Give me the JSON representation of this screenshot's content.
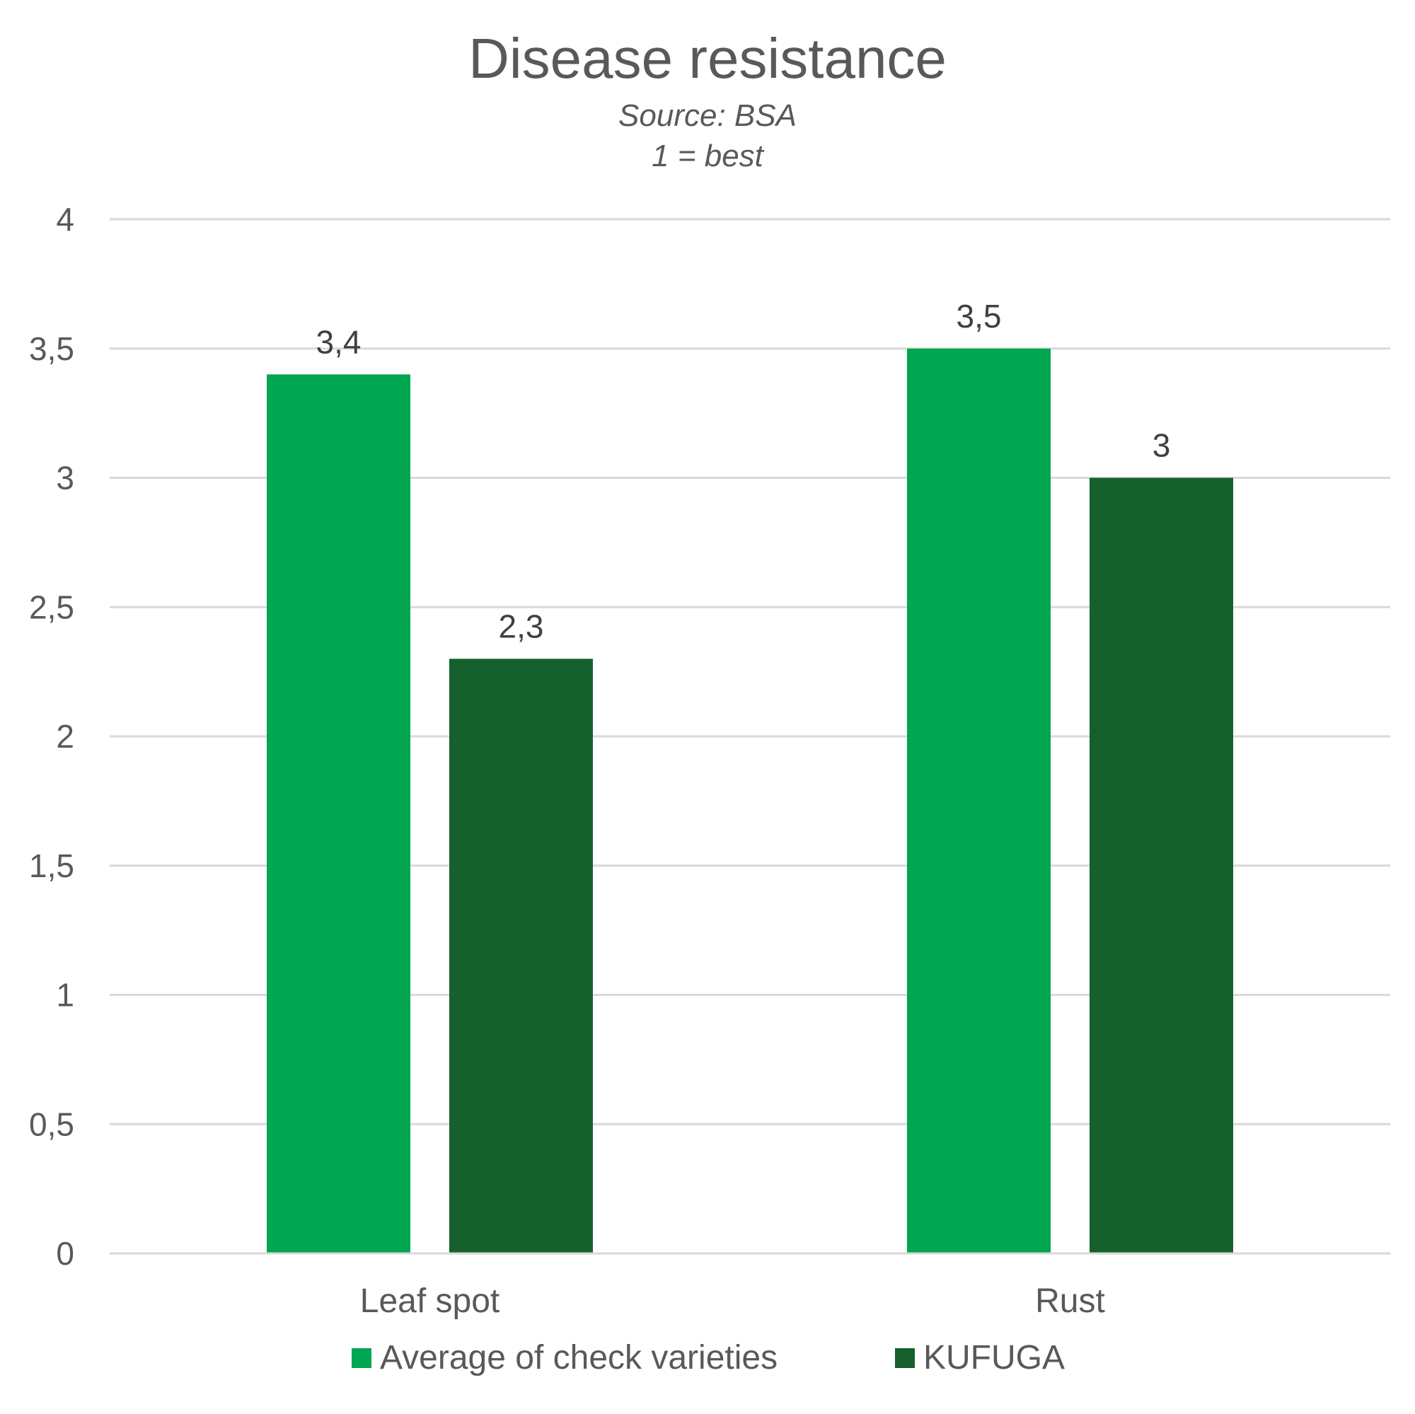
{
  "chart_data": {
    "type": "bar",
    "title": "Disease resistance",
    "subtitle_lines": [
      "Source: BSA",
      "1 = best"
    ],
    "xlabel": "",
    "ylabel": "",
    "categories": [
      "Leaf spot",
      "Rust"
    ],
    "series": [
      {
        "name": "Average of check varieties",
        "color": "#00A651",
        "values": [
          3.4,
          3.5
        ],
        "value_labels": [
          "3,4",
          "3,5"
        ]
      },
      {
        "name": "KUFUGA",
        "color": "#16602E",
        "values": [
          2.3,
          3
        ],
        "value_labels": [
          "2,3",
          "3"
        ]
      }
    ],
    "ylim": [
      0,
      4
    ],
    "y_ticks": [
      0,
      0.5,
      1,
      1.5,
      2,
      2.5,
      3,
      3.5,
      4
    ],
    "y_tick_labels": [
      "0",
      "0,5",
      "1",
      "1,5",
      "2",
      "2,5",
      "3",
      "3,5",
      "4"
    ],
    "grid": true,
    "grid_color": "#D9D9D9",
    "legend_position": "bottom"
  }
}
